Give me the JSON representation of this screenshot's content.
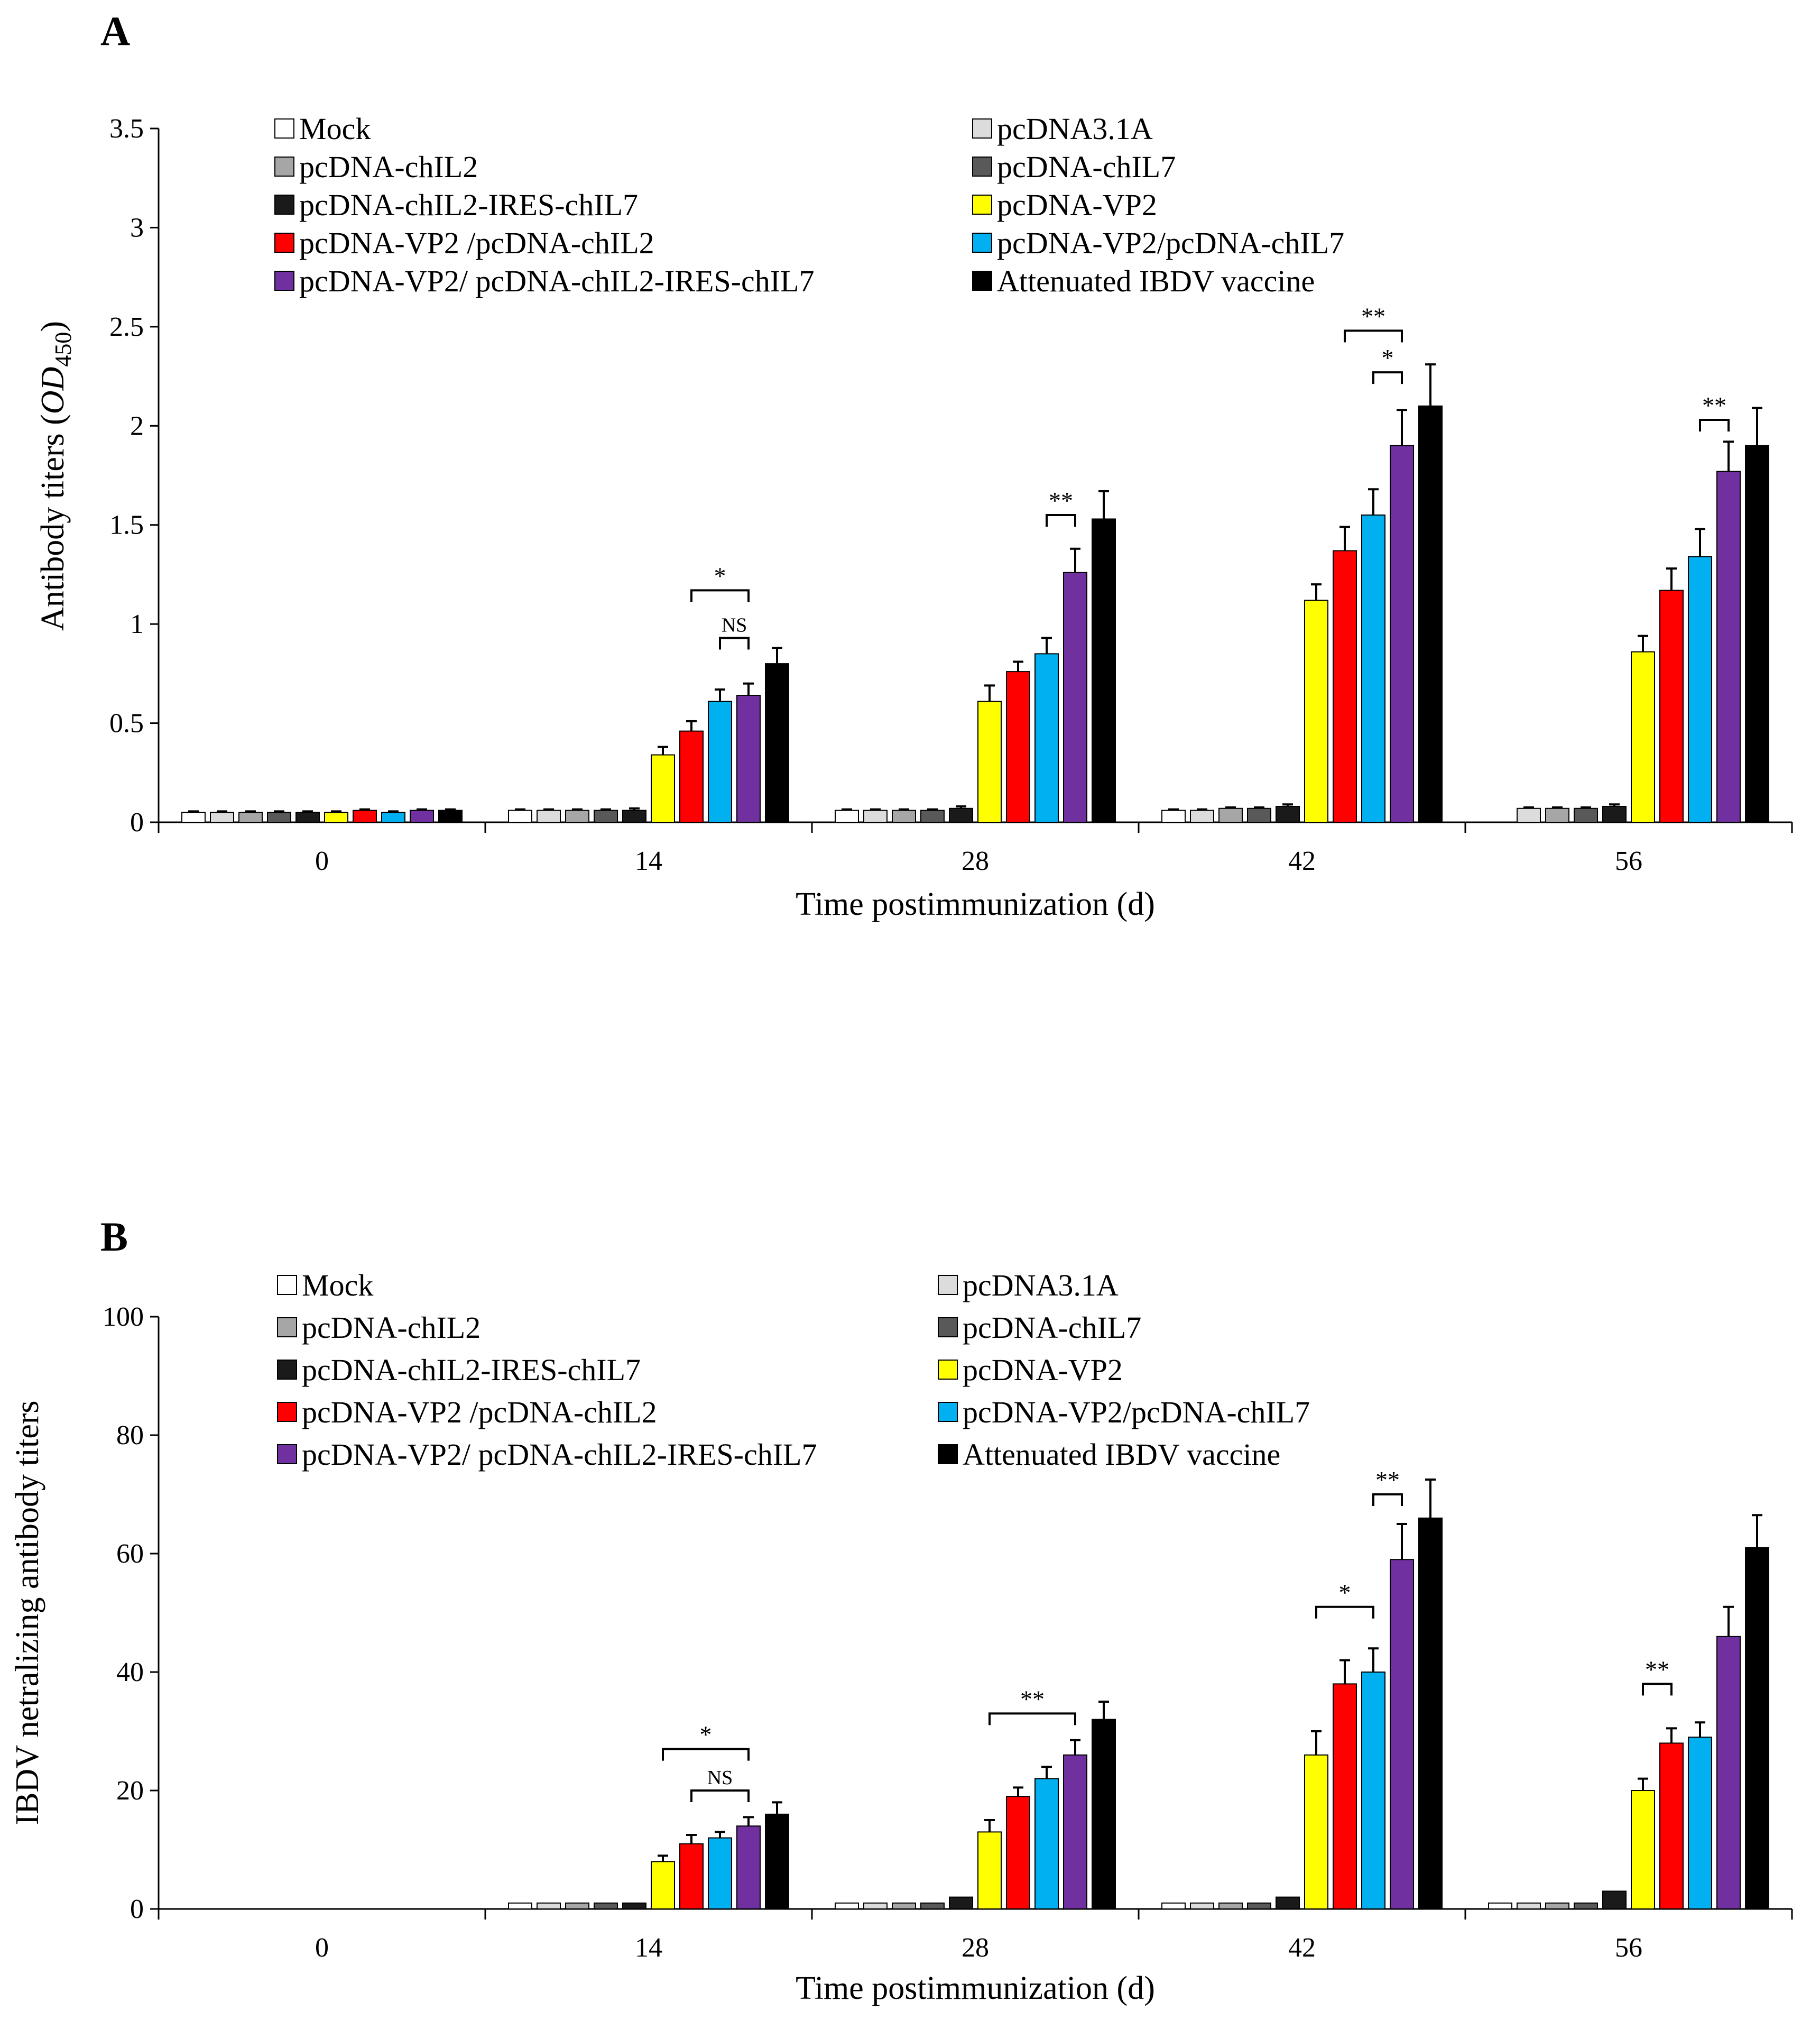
{
  "chart_data": [
    {
      "type": "bar",
      "panel": "A",
      "title": "",
      "xlabel": "Time postimmunization (d)",
      "ylabel": "Antibody titers (OD450)",
      "ylabel_main": "Antibody titers (",
      "ylabel_italic": "OD",
      "ylabel_sub": "450",
      "ylabel_end": ")",
      "ylim": [
        0,
        3.5
      ],
      "yticks": [
        "0",
        "0.5",
        "1",
        "1.5",
        "2",
        "2.5",
        "3",
        "3.5"
      ],
      "categories": [
        "0",
        "14",
        "28",
        "42",
        "56"
      ],
      "legend_placement": "top",
      "series": [
        {
          "name": "Mock",
          "color": "#ffffff",
          "values": [
            0.05,
            0.06,
            0.06,
            0.06,
            0.0
          ],
          "errors": [
            0.005,
            0.005,
            0.005,
            0.005,
            0.0
          ]
        },
        {
          "name": "pcDNA3.1A",
          "color": "#dcdcdc",
          "values": [
            0.05,
            0.06,
            0.06,
            0.06,
            0.07
          ],
          "errors": [
            0.005,
            0.005,
            0.005,
            0.005,
            0.005
          ]
        },
        {
          "name": "pcDNA-chIL2",
          "color": "#a6a6a6",
          "values": [
            0.05,
            0.06,
            0.06,
            0.07,
            0.07
          ],
          "errors": [
            0.005,
            0.005,
            0.005,
            0.005,
            0.005
          ]
        },
        {
          "name": "pcDNA-chIL7",
          "color": "#595959",
          "values": [
            0.05,
            0.06,
            0.06,
            0.07,
            0.07
          ],
          "errors": [
            0.005,
            0.005,
            0.005,
            0.005,
            0.005
          ]
        },
        {
          "name": "pcDNA-chIL2-IRES-chIL7",
          "color": "#1a1a1a",
          "values": [
            0.05,
            0.06,
            0.07,
            0.08,
            0.08
          ],
          "errors": [
            0.005,
            0.01,
            0.01,
            0.01,
            0.01
          ]
        },
        {
          "name": "pcDNA-VP2",
          "color": "#ffff00",
          "values": [
            0.05,
            0.34,
            0.61,
            1.12,
            0.86
          ],
          "errors": [
            0.005,
            0.04,
            0.08,
            0.08,
            0.08
          ]
        },
        {
          "name": "pcDNA-VP2 /pcDNA-chIL2",
          "color": "#ff0000",
          "values": [
            0.06,
            0.46,
            0.76,
            1.37,
            1.17
          ],
          "errors": [
            0.005,
            0.05,
            0.05,
            0.12,
            0.11
          ]
        },
        {
          "name": "pcDNA-VP2/pcDNA-chIL7",
          "color": "#00b0f0",
          "values": [
            0.05,
            0.61,
            0.85,
            1.55,
            1.34
          ],
          "errors": [
            0.005,
            0.06,
            0.08,
            0.13,
            0.14
          ]
        },
        {
          "name": "pcDNA-VP2/ pcDNA-chIL2-IRES-chIL7",
          "color": "#7030a0",
          "values": [
            0.06,
            0.64,
            1.26,
            1.9,
            1.77
          ],
          "errors": [
            0.005,
            0.06,
            0.12,
            0.18,
            0.15
          ]
        },
        {
          "name": "Attenuated IBDV vaccine",
          "color": "#000000",
          "values": [
            0.06,
            0.8,
            1.53,
            2.1,
            1.9
          ],
          "errors": [
            0.005,
            0.08,
            0.14,
            0.21,
            0.19
          ]
        }
      ],
      "annotations": [
        {
          "label": "*",
          "category": "14",
          "from_series": 6,
          "to_series": 8,
          "y": 1.17
        },
        {
          "label": "NS",
          "category": "14",
          "from_series": 7,
          "to_series": 8,
          "y": 0.93
        },
        {
          "label": "**",
          "category": "28",
          "from_series": 7,
          "to_series": 8,
          "y": 1.55
        },
        {
          "label": "**",
          "category": "42",
          "from_series": 6,
          "to_series": 8,
          "y": 2.48
        },
        {
          "label": "*",
          "category": "42",
          "from_series": 7,
          "to_series": 8,
          "y": 2.27
        },
        {
          "label": "**",
          "category": "56",
          "from_series": 7,
          "to_series": 8,
          "y": 2.03
        }
      ]
    },
    {
      "type": "bar",
      "panel": "B",
      "title": "",
      "xlabel": "Time postimmunization (d)",
      "ylabel": "IBDV netralizing antibody titers",
      "ylim": [
        0,
        100
      ],
      "yticks": [
        "0",
        "20",
        "40",
        "60",
        "80",
        "100"
      ],
      "categories": [
        "0",
        "14",
        "28",
        "42",
        "56"
      ],
      "legend_placement": "top",
      "series": [
        {
          "name": "Mock",
          "color": "#ffffff",
          "values": [
            0,
            1,
            1,
            1,
            1
          ],
          "errors": [
            0,
            0,
            0,
            0,
            0
          ]
        },
        {
          "name": "pcDNA3.1A",
          "color": "#dcdcdc",
          "values": [
            0,
            1,
            1,
            1,
            1
          ],
          "errors": [
            0,
            0,
            0,
            0,
            0
          ]
        },
        {
          "name": "pcDNA-chIL2",
          "color": "#a6a6a6",
          "values": [
            0,
            1,
            1,
            1,
            1
          ],
          "errors": [
            0,
            0,
            0,
            0,
            0
          ]
        },
        {
          "name": "pcDNA-chIL7",
          "color": "#595959",
          "values": [
            0,
            1,
            1,
            1,
            1
          ],
          "errors": [
            0,
            0,
            0,
            0,
            0
          ]
        },
        {
          "name": "pcDNA-chIL2-IRES-chIL7",
          "color": "#1a1a1a",
          "values": [
            0,
            1,
            2,
            2,
            3
          ],
          "errors": [
            0,
            0,
            0,
            0,
            0
          ]
        },
        {
          "name": "pcDNA-VP2",
          "color": "#ffff00",
          "values": [
            0,
            8,
            13,
            26,
            20
          ],
          "errors": [
            0,
            1,
            2,
            4,
            2
          ]
        },
        {
          "name": "pcDNA-VP2 /pcDNA-chIL2",
          "color": "#ff0000",
          "values": [
            0,
            11,
            19,
            38,
            28
          ],
          "errors": [
            0,
            1.5,
            1.5,
            4,
            2.5
          ]
        },
        {
          "name": "pcDNA-VP2/pcDNA-chIL7",
          "color": "#00b0f0",
          "values": [
            0,
            12,
            22,
            40,
            29
          ],
          "errors": [
            0,
            1,
            2,
            4,
            2.5
          ]
        },
        {
          "name": "pcDNA-VP2/ pcDNA-chIL2-IRES-chIL7",
          "color": "#7030a0",
          "values": [
            0,
            14,
            26,
            59,
            46
          ],
          "errors": [
            0,
            1.5,
            2.5,
            6,
            5
          ]
        },
        {
          "name": "Attenuated IBDV vaccine",
          "color": "#000000",
          "values": [
            0,
            16,
            32,
            66,
            61
          ],
          "errors": [
            0,
            2,
            3,
            6.5,
            5.5
          ]
        }
      ],
      "annotations": [
        {
          "label": "*",
          "category": "14",
          "from_series": 5,
          "to_series": 8,
          "y": 27
        },
        {
          "label": "NS",
          "category": "14",
          "from_series": 6,
          "to_series": 8,
          "y": 20
        },
        {
          "label": "**",
          "category": "28",
          "from_series": 5,
          "to_series": 8,
          "y": 33
        },
        {
          "label": "*",
          "category": "42",
          "from_series": 5,
          "to_series": 7,
          "y": 51
        },
        {
          "label": "**",
          "category": "42",
          "from_series": 7,
          "to_series": 8,
          "y": 70
        },
        {
          "label": "**",
          "category": "56",
          "from_series": 5,
          "to_series": 6,
          "y": 38
        }
      ]
    }
  ]
}
